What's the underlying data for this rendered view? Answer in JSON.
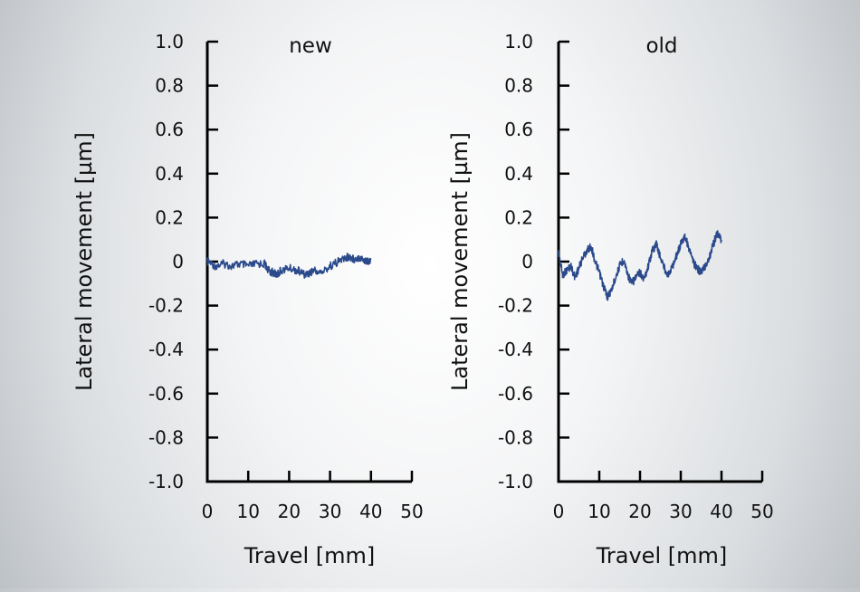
{
  "chart_data": [
    {
      "type": "line",
      "title": "new",
      "xlabel": "Travel [mm]",
      "ylabel": "Lateral movement [µm]",
      "xlim": [
        0,
        50
      ],
      "ylim": [
        -1.0,
        1.0
      ],
      "xticks": [
        0,
        10,
        20,
        30,
        40,
        50
      ],
      "xtick_labels": [
        "0",
        "10",
        "20",
        "30",
        "40",
        "50"
      ],
      "yticks": [
        1.0,
        0.8,
        0.6,
        0.4,
        0.2,
        0,
        -0.2,
        -0.4,
        -0.6,
        -0.8,
        -1.0
      ],
      "ytick_labels": [
        "1.0",
        "0.8",
        "0.6",
        "0.4",
        "0.2",
        "0",
        "-0.2",
        "-0.4",
        "-0.6",
        "-0.8",
        "-1.0"
      ],
      "grid": false,
      "line_color": "#2b4a8c",
      "series": [
        {
          "x": [
            0,
            2,
            4,
            6,
            8,
            10,
            12,
            14,
            15,
            16,
            17,
            18,
            20,
            22,
            24,
            25,
            26,
            28,
            30,
            32,
            33,
            34,
            35,
            36,
            37,
            38,
            39,
            40
          ],
          "y": [
            0.0,
            -0.02,
            -0.01,
            -0.02,
            -0.01,
            -0.02,
            -0.01,
            -0.01,
            -0.04,
            -0.05,
            -0.06,
            -0.04,
            -0.03,
            -0.04,
            -0.06,
            -0.05,
            -0.04,
            -0.05,
            -0.02,
            0.0,
            0.01,
            0.02,
            0.02,
            0.01,
            0.02,
            0.01,
            0.0,
            0.01
          ]
        }
      ]
    },
    {
      "type": "line",
      "title": "old",
      "xlabel": "Travel [mm]",
      "ylabel": "Lateral movement [µm]",
      "xlim": [
        0,
        50
      ],
      "ylim": [
        -1.0,
        1.0
      ],
      "xticks": [
        0,
        10,
        20,
        30,
        40,
        50
      ],
      "xtick_labels": [
        "0",
        "10",
        "20",
        "30",
        "40",
        "50"
      ],
      "yticks": [
        1.0,
        0.8,
        0.6,
        0.4,
        0.2,
        0,
        -0.2,
        -0.4,
        -0.6,
        -0.8,
        -1.0
      ],
      "ytick_labels": [
        "1.0",
        "0.8",
        "0.6",
        "0.4",
        "0.2",
        "0",
        "-0.2",
        "-0.4",
        "-0.6",
        "-0.8",
        "-1.0"
      ],
      "grid": false,
      "line_color": "#2b4a8c",
      "series": [
        {
          "x": [
            0,
            1,
            2,
            3,
            4,
            5,
            6,
            7,
            8,
            9,
            10,
            11,
            12,
            13,
            14,
            15,
            16,
            17,
            18,
            19,
            20,
            21,
            22,
            23,
            24,
            25,
            26,
            27,
            28,
            29,
            30,
            31,
            32,
            33,
            34,
            35,
            36,
            37,
            38,
            39,
            40
          ],
          "y": [
            0.04,
            -0.06,
            -0.04,
            -0.02,
            -0.07,
            -0.03,
            0.02,
            0.05,
            0.07,
            0.0,
            -0.05,
            -0.11,
            -0.16,
            -0.13,
            -0.07,
            -0.02,
            0.01,
            -0.06,
            -0.1,
            -0.07,
            -0.05,
            -0.08,
            -0.02,
            0.05,
            0.08,
            0.02,
            -0.03,
            -0.06,
            -0.02,
            0.03,
            0.08,
            0.12,
            0.06,
            0.0,
            -0.03,
            -0.05,
            -0.02,
            0.02,
            0.08,
            0.13,
            0.1
          ]
        }
      ]
    }
  ]
}
